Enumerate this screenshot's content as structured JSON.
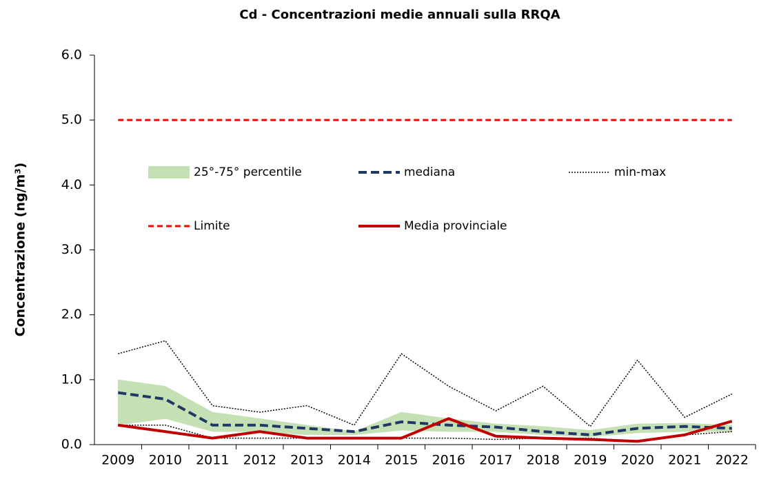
{
  "chart_data": {
    "type": "line",
    "title": "Cd - Concentrazioni medie annuali sulla RRQA",
    "y_label": "Concentrazione (ng/m³)",
    "categories": [
      "2009",
      "2010",
      "2011",
      "2012",
      "2013",
      "2014",
      "2015",
      "2016",
      "2017",
      "2018",
      "2019",
      "2020",
      "2021",
      "2022"
    ],
    "ylim": [
      0,
      6
    ],
    "yticks": [
      {
        "value": 0,
        "label": "0.0"
      },
      {
        "value": 1,
        "label": "1.0"
      },
      {
        "value": 2,
        "label": "2.0"
      },
      {
        "value": 3,
        "label": "3.0"
      },
      {
        "value": 4,
        "label": "4.0"
      },
      {
        "value": 5,
        "label": "5.0"
      },
      {
        "value": 6,
        "label": "6.0"
      }
    ],
    "grid": false,
    "series": [
      {
        "name": "25°-75° percentile",
        "kind": "band",
        "color": "#c5e0b4",
        "low": [
          0.3,
          0.4,
          0.2,
          0.2,
          0.15,
          0.15,
          0.22,
          0.2,
          0.2,
          0.15,
          0.12,
          0.18,
          0.2,
          0.2
        ],
        "high": [
          1.0,
          0.9,
          0.5,
          0.4,
          0.3,
          0.2,
          0.5,
          0.4,
          0.32,
          0.28,
          0.22,
          0.32,
          0.33,
          0.3
        ]
      },
      {
        "name": "mediana",
        "kind": "dashed",
        "color": "#1f3864",
        "values": [
          0.8,
          0.7,
          0.3,
          0.3,
          0.25,
          0.2,
          0.35,
          0.3,
          0.27,
          0.2,
          0.15,
          0.25,
          0.28,
          0.25
        ]
      },
      {
        "name": "min-max",
        "kind": "dotted",
        "color": "#000000",
        "min": [
          0.3,
          0.3,
          0.1,
          0.1,
          0.1,
          0.1,
          0.1,
          0.1,
          0.08,
          0.1,
          0.1,
          0.05,
          0.15,
          0.2
        ],
        "max": [
          1.4,
          1.6,
          0.6,
          0.5,
          0.6,
          0.3,
          1.4,
          0.9,
          0.52,
          0.9,
          0.28,
          1.3,
          0.42,
          0.78
        ]
      },
      {
        "name": "Limite",
        "kind": "dashed-thin",
        "color": "#ff0000",
        "values": [
          5,
          5,
          5,
          5,
          5,
          5,
          5,
          5,
          5,
          5,
          5,
          5,
          5,
          5
        ]
      },
      {
        "name": "Media provinciale",
        "kind": "solid",
        "color": "#c00000",
        "values": [
          0.3,
          0.2,
          0.1,
          0.2,
          0.1,
          0.1,
          0.1,
          0.4,
          0.13,
          0.1,
          0.08,
          0.05,
          0.15,
          0.36
        ]
      }
    ]
  }
}
